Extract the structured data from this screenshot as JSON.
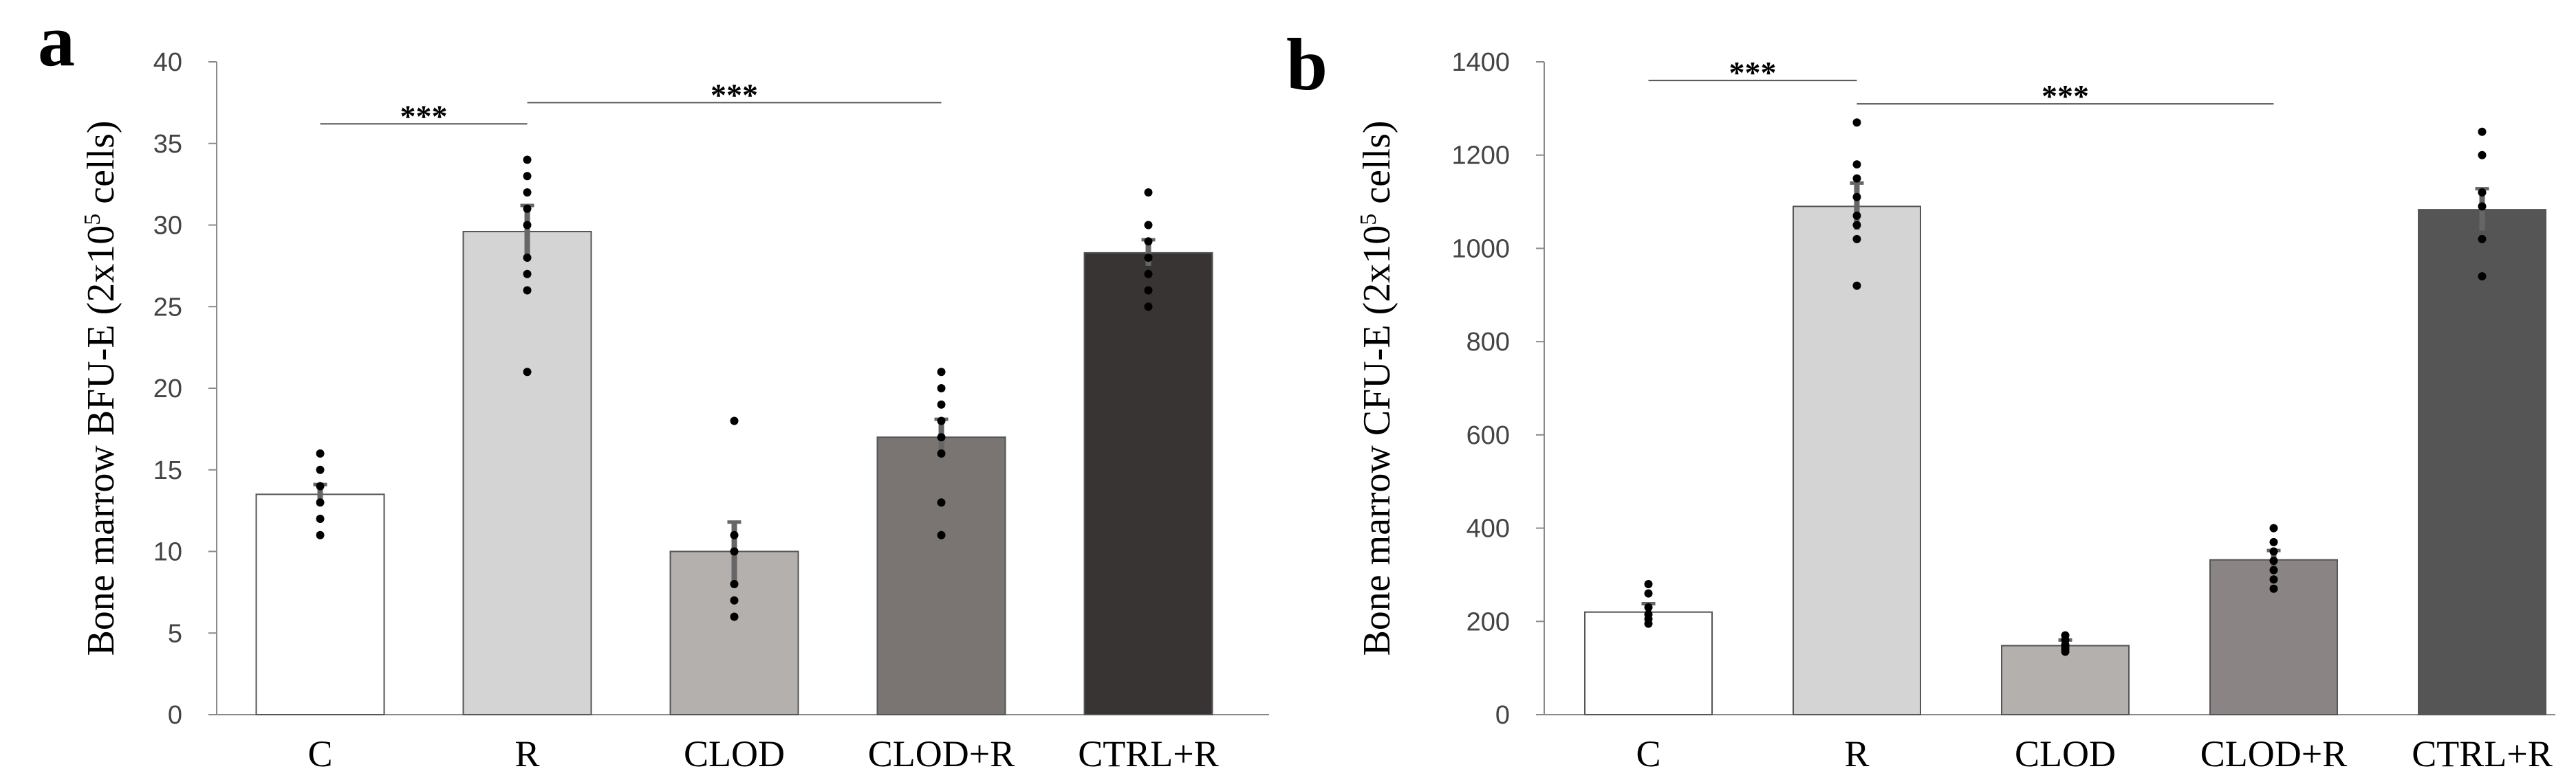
{
  "chart_data": [
    {
      "type": "bar",
      "panel_label": "a",
      "title": "",
      "xlabel": "",
      "ylabel_prefix": "Bone marrow BFU-E (2x10",
      "ylabel_sup": "5",
      "ylabel_suffix": " cells)",
      "ylim": [
        0,
        40
      ],
      "yticks": [
        "0",
        "5",
        "10",
        "15",
        "20",
        "25",
        "30",
        "35",
        "40"
      ],
      "categories": [
        "C",
        "R",
        "CLOD",
        "CLOD+R",
        "CTRL+R"
      ],
      "values": [
        13.5,
        29.6,
        10,
        17,
        28.3
      ],
      "errors": [
        0.6,
        1.6,
        1.8,
        1.1,
        0.8
      ],
      "colors": [
        "#ffffff",
        "#d4d4d4",
        "#b3b0ae",
        "#7a7473",
        "#383434"
      ],
      "points": [
        [
          11,
          12,
          13,
          14,
          15,
          16
        ],
        [
          21,
          26,
          27,
          28,
          30,
          31,
          32,
          33,
          34
        ],
        [
          6,
          7,
          8,
          10,
          11,
          18
        ],
        [
          11,
          13,
          16,
          17,
          18,
          19,
          20,
          21
        ],
        [
          25,
          26,
          27,
          28,
          29,
          30,
          32
        ]
      ],
      "significance": [
        {
          "from": 0,
          "to": 1,
          "y": 36.2,
          "label": "***"
        },
        {
          "from": 1,
          "to": 3,
          "y": 37.5,
          "label": "***"
        }
      ]
    },
    {
      "type": "bar",
      "panel_label": "b",
      "title": "",
      "xlabel": "",
      "ylabel_prefix": "Bone marrow CFU-E (2x10",
      "ylabel_sup": "5",
      "ylabel_suffix": " cells)",
      "ylim": [
        0,
        1400
      ],
      "yticks": [
        "0",
        "200",
        "400",
        "600",
        "800",
        "1000",
        "1200",
        "1400"
      ],
      "categories": [
        "C",
        "R",
        "CLOD",
        "CLOD+R",
        "CTRL+R"
      ],
      "values": [
        220,
        1090,
        148,
        332,
        1083
      ],
      "errors": [
        18,
        50,
        12,
        20,
        45
      ],
      "colors": [
        "#ffffff",
        "#d4d4d4",
        "#b3b0ae",
        "#8a8584",
        "#555555"
      ],
      "points": [
        [
          195,
          205,
          215,
          230,
          260,
          280
        ],
        [
          920,
          1020,
          1050,
          1070,
          1110,
          1150,
          1180,
          1270
        ],
        [
          135,
          140,
          145,
          150,
          160,
          170
        ],
        [
          270,
          290,
          310,
          330,
          350,
          370,
          400
        ],
        [
          940,
          1020,
          1090,
          1120,
          1200,
          1250
        ]
      ],
      "significance": [
        {
          "from": 0,
          "to": 1,
          "y": 1360,
          "label": "***"
        },
        {
          "from": 1,
          "to": 3,
          "y": 1310,
          "label": "***"
        }
      ]
    }
  ]
}
